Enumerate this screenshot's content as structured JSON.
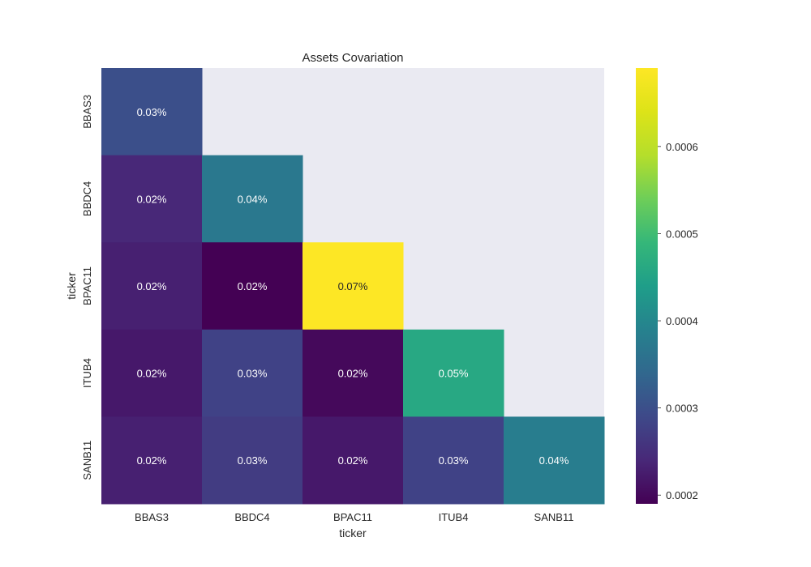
{
  "chart_data": {
    "type": "heatmap",
    "title": "Assets Covariation",
    "xlabel": "ticker",
    "ylabel": "ticker",
    "x_categories": [
      "BBAS3",
      "BBDC4",
      "BPAC11",
      "ITUB4",
      "SANB11"
    ],
    "y_categories": [
      "BBAS3",
      "BBDC4",
      "BPAC11",
      "ITUB4",
      "SANB11"
    ],
    "values": [
      [
        0.0003,
        null,
        null,
        null,
        null
      ],
      [
        0.00024,
        0.00037,
        null,
        null,
        null
      ],
      [
        0.00023,
        0.00019,
        0.00069,
        null,
        null
      ],
      [
        0.00022,
        0.00028,
        0.0002,
        0.00046,
        null
      ],
      [
        0.00023,
        0.00027,
        0.00022,
        0.00028,
        0.00038
      ]
    ],
    "cell_labels": [
      [
        "0.03%",
        null,
        null,
        null,
        null
      ],
      [
        "0.02%",
        "0.04%",
        null,
        null,
        null
      ],
      [
        "0.02%",
        "0.02%",
        "0.07%",
        null,
        null
      ],
      [
        "0.02%",
        "0.03%",
        "0.02%",
        "0.05%",
        null
      ],
      [
        "0.02%",
        "0.03%",
        "0.02%",
        "0.03%",
        "0.04%"
      ]
    ],
    "mask": "upper-triangle",
    "colormap": "viridis",
    "colorbar": {
      "range": [
        0.00019,
        0.00069
      ],
      "ticks": [
        0.0002,
        0.0003,
        0.0004,
        0.0005,
        0.0006
      ],
      "tick_labels": [
        "0.0002",
        "0.0003",
        "0.0004",
        "0.0005",
        "0.0006"
      ]
    },
    "background_color": "#eaeaf2"
  }
}
